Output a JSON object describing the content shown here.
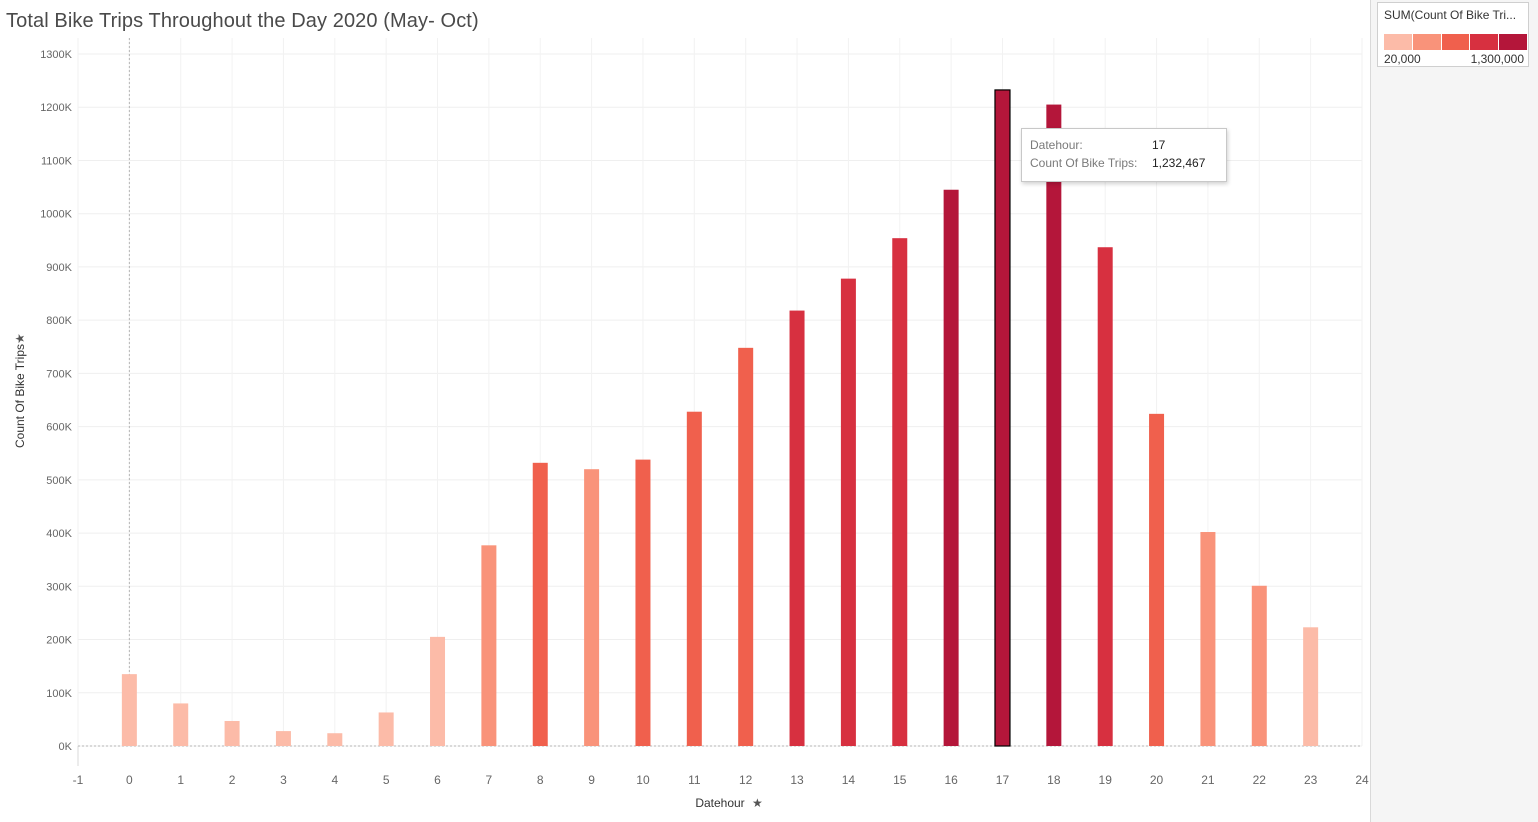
{
  "title": "Total Bike Trips Throughout the Day 2020 (May- Oct)",
  "legend": {
    "title": "SUM(Count Of Bike Tri...",
    "min_label": "20,000",
    "max_label": "1,300,000",
    "colors": [
      "#fcbba8",
      "#f9937a",
      "#f0604d",
      "#d73040",
      "#b4163a"
    ]
  },
  "tooltip": {
    "row1_label": "Datehour:",
    "row1_value": "17",
    "row2_label": "Count Of Bike Trips:",
    "row2_value": "1,232,467"
  },
  "chart_data": {
    "type": "bar",
    "xlabel": "Datehour",
    "ylabel": "Count Of Bike Trips",
    "x": [
      0,
      1,
      2,
      3,
      4,
      5,
      6,
      7,
      8,
      9,
      10,
      11,
      12,
      13,
      14,
      15,
      16,
      17,
      18,
      19,
      20,
      21,
      22,
      23
    ],
    "values": [
      135000,
      80000,
      47000,
      28000,
      24000,
      63000,
      205000,
      377000,
      532000,
      520000,
      538000,
      628000,
      748000,
      818000,
      878000,
      954000,
      1045000,
      1232467,
      1205000,
      937000,
      624000,
      402000,
      301000,
      223000
    ],
    "xlim": [
      -1,
      24
    ],
    "ylim": [
      0,
      1300000
    ],
    "xticks": [
      "-1",
      "0",
      "1",
      "2",
      "3",
      "4",
      "5",
      "6",
      "7",
      "8",
      "9",
      "10",
      "11",
      "12",
      "13",
      "14",
      "15",
      "16",
      "17",
      "18",
      "19",
      "20",
      "21",
      "22",
      "23",
      "24"
    ],
    "yticks": [
      "0K",
      "100K",
      "200K",
      "300K",
      "400K",
      "500K",
      "600K",
      "700K",
      "800K",
      "900K",
      "1000K",
      "1100K",
      "1200K",
      "1300K"
    ],
    "highlighted_x": 17,
    "color_scale": {
      "min": 20000,
      "max": 1300000
    },
    "grid": true
  }
}
